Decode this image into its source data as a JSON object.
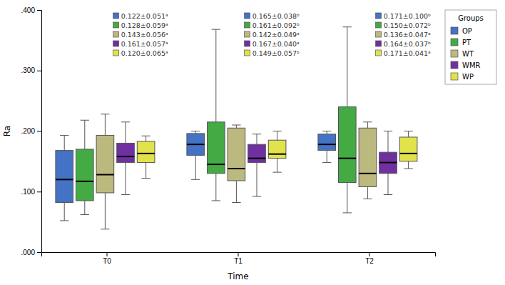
{
  "chart_data": {
    "type": "box",
    "xlabel": "Time",
    "ylabel": "Ra",
    "categories": [
      "T0",
      "T1",
      "T2"
    ],
    "ylim": [
      0.0,
      0.4
    ],
    "yticks": [
      {
        "value": 0.0,
        "label": ".000"
      },
      {
        "value": 0.1,
        "label": ".100"
      },
      {
        "value": 0.2,
        "label": ".200"
      },
      {
        "value": 0.3,
        "label": ".300"
      },
      {
        "value": 0.4,
        "label": ".400"
      }
    ],
    "legend": "right",
    "legend_title": "Groups",
    "series": [
      {
        "name": "OP",
        "color": "#4472c4",
        "whislo": [
          0.052,
          0.12,
          0.148
        ],
        "q1": [
          0.082,
          0.16,
          0.168
        ],
        "med": [
          0.12,
          0.178,
          0.178
        ],
        "q3": [
          0.168,
          0.196,
          0.195
        ],
        "whishi": [
          0.193,
          0.2,
          0.2
        ],
        "annotations": [
          "0.122±0.051ᵃ",
          "0.165±0.038ᵇ",
          "0.171±0.100ᵇ"
        ]
      },
      {
        "name": "PT",
        "color": "#44aa44",
        "whislo": [
          0.062,
          0.085,
          0.065
        ],
        "q1": [
          0.085,
          0.13,
          0.115
        ],
        "med": [
          0.117,
          0.145,
          0.155
        ],
        "q3": [
          0.17,
          0.215,
          0.24
        ],
        "whishi": [
          0.218,
          0.368,
          0.372
        ],
        "annotations": [
          "0.128±0.059ᵃ",
          "0.161±0.092ᵇ",
          "0.150±0.072ᵇ"
        ]
      },
      {
        "name": "WT",
        "color": "#bcb97e",
        "whislo": [
          0.038,
          0.082,
          0.088
        ],
        "q1": [
          0.098,
          0.118,
          0.108
        ],
        "med": [
          0.128,
          0.138,
          0.13
        ],
        "q3": [
          0.193,
          0.205,
          0.205
        ],
        "whishi": [
          0.228,
          0.21,
          0.215
        ],
        "annotations": [
          "0.143±0.056ᵃ",
          "0.142±0.049ᵃ",
          "0.136±0.047ᵃ"
        ]
      },
      {
        "name": "WMR",
        "color": "#7030a0",
        "whislo": [
          0.095,
          0.092,
          0.095
        ],
        "q1": [
          0.148,
          0.148,
          0.13
        ],
        "med": [
          0.158,
          0.155,
          0.148
        ],
        "q3": [
          0.18,
          0.178,
          0.165
        ],
        "whishi": [
          0.215,
          0.195,
          0.2
        ],
        "annotations": [
          "0.161±0.057ᵃ",
          "0.167±0.040ᵃ",
          "0.164±0.037ᵇ"
        ]
      },
      {
        "name": "WP",
        "color": "#e2e24a",
        "whislo": [
          0.122,
          0.132,
          0.138
        ],
        "q1": [
          0.148,
          0.155,
          0.15
        ],
        "med": [
          0.163,
          0.162,
          0.163
        ],
        "q3": [
          0.183,
          0.185,
          0.19
        ],
        "whishi": [
          0.192,
          0.2,
          0.2
        ],
        "annotations": [
          "0.120±0.065ᵃ",
          "0.149±0.057ᵇ",
          "0.171±0.041ᵃ"
        ]
      }
    ]
  }
}
